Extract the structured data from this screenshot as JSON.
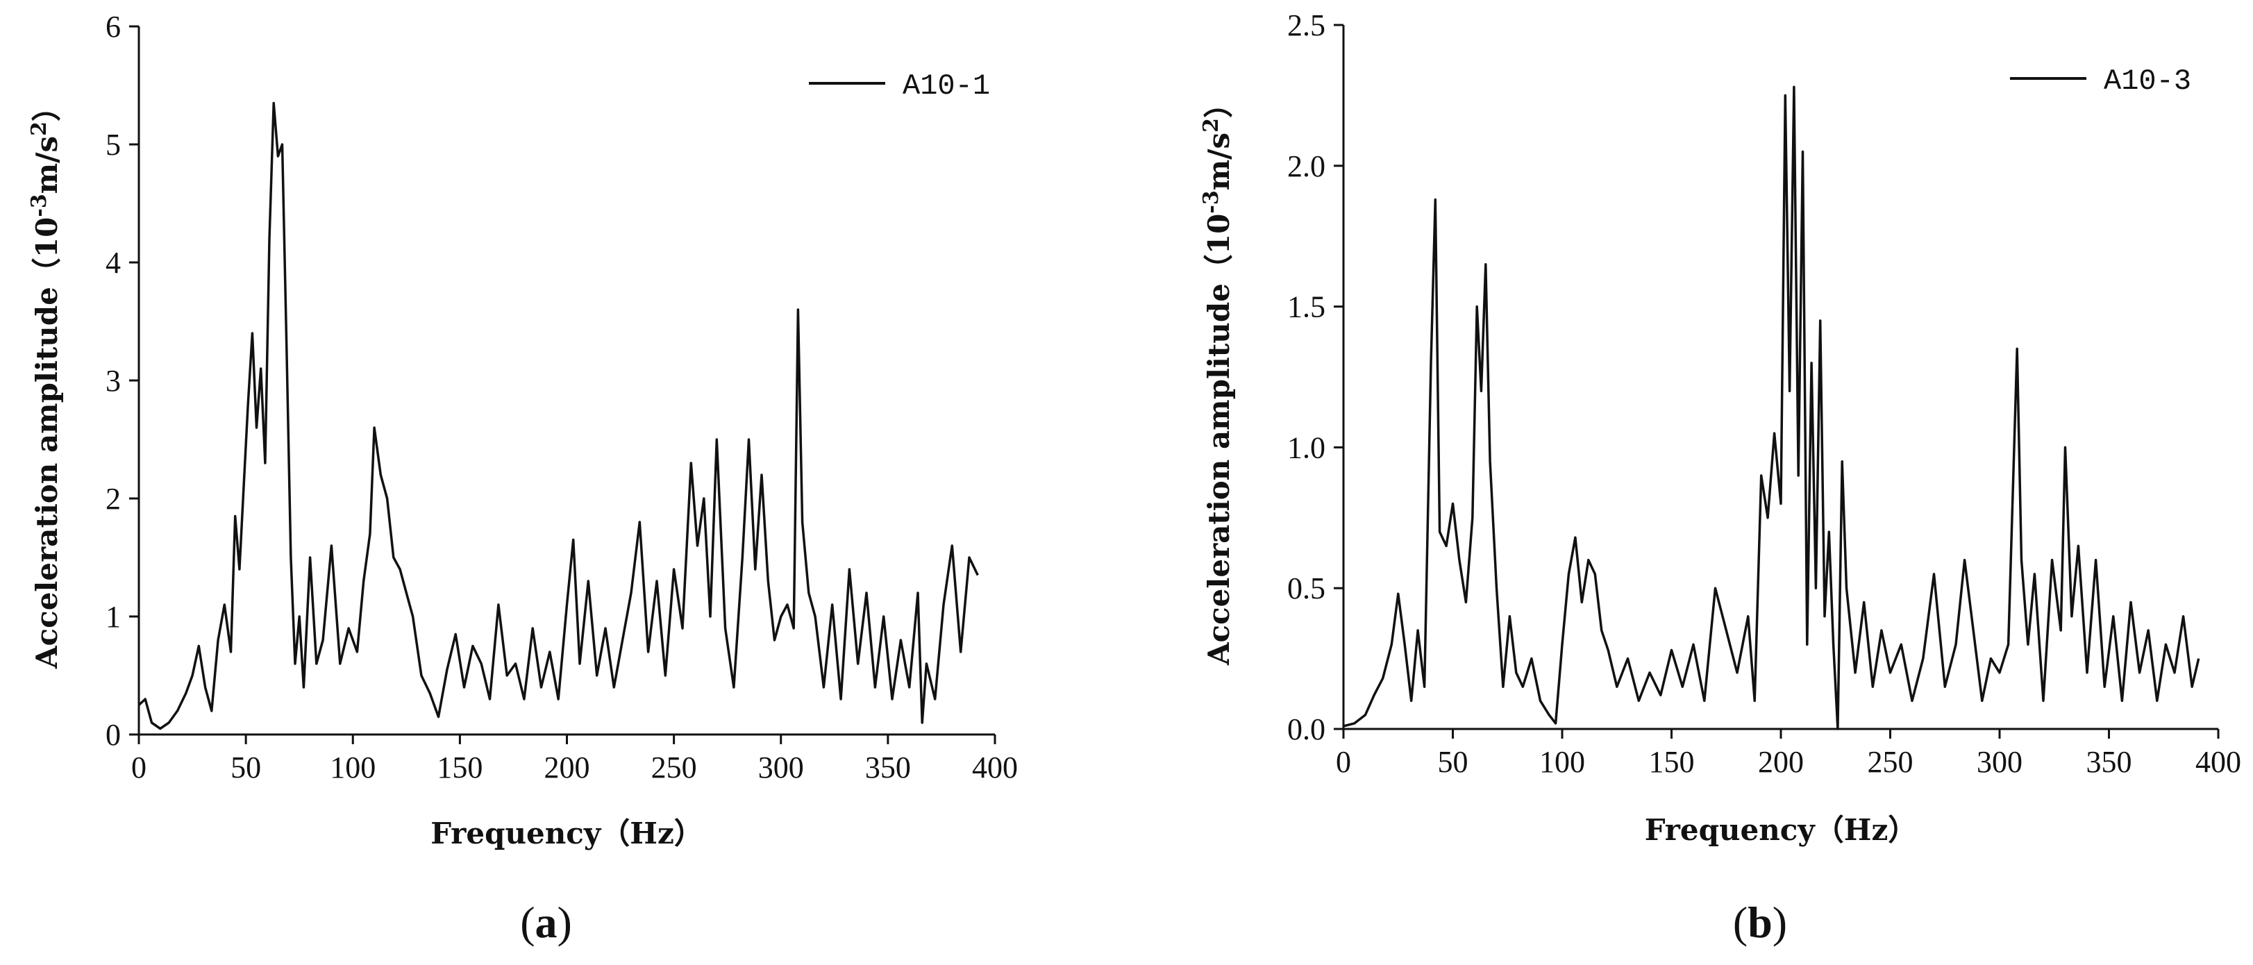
{
  "chart_data": [
    {
      "type": "line",
      "panel_label": "a",
      "xlabel": "Frequency（Hz）",
      "ylabel_prefix": "Acceleration amplitude（",
      "ylabel_base": "10",
      "ylabel_exp": "-3",
      "ylabel_unit": "m/s",
      "ylabel_unit_exp": "2",
      "ylabel_suffix": "）",
      "xlim": [
        0,
        400
      ],
      "ylim": [
        0,
        6
      ],
      "xticks": [
        0,
        50,
        100,
        150,
        200,
        250,
        300,
        350,
        400
      ],
      "yticks": [
        0,
        1,
        2,
        3,
        4,
        5,
        6
      ],
      "ytick_labels": [
        "0",
        "1",
        "2",
        "3",
        "4",
        "5",
        "6"
      ],
      "legend": "top-right",
      "series": [
        {
          "name": "A10-1",
          "x": [
            0,
            3,
            6,
            10,
            14,
            18,
            22,
            25,
            28,
            31,
            34,
            37,
            40,
            43,
            45,
            47,
            49,
            51,
            53,
            55,
            57,
            59,
            61,
            63,
            65,
            67,
            69,
            71,
            73,
            75,
            77,
            80,
            83,
            86,
            90,
            94,
            98,
            102,
            105,
            108,
            110,
            113,
            116,
            119,
            122,
            125,
            128,
            132,
            136,
            140,
            144,
            148,
            152,
            156,
            160,
            164,
            168,
            172,
            176,
            180,
            184,
            188,
            192,
            196,
            200,
            203,
            206,
            210,
            214,
            218,
            222,
            226,
            230,
            234,
            238,
            242,
            246,
            250,
            254,
            258,
            261,
            264,
            267,
            270,
            274,
            278,
            282,
            285,
            288,
            291,
            294,
            297,
            300,
            303,
            306,
            308,
            310,
            313,
            316,
            320,
            324,
            328,
            332,
            336,
            340,
            344,
            348,
            352,
            356,
            360,
            364,
            366,
            368,
            372,
            376,
            380,
            384,
            388,
            392
          ],
          "y": [
            0.25,
            0.3,
            0.1,
            0.05,
            0.1,
            0.2,
            0.35,
            0.5,
            0.75,
            0.4,
            0.2,
            0.8,
            1.1,
            0.7,
            1.85,
            1.4,
            2.1,
            2.8,
            3.4,
            2.6,
            3.1,
            2.3,
            4.2,
            5.35,
            4.9,
            5.0,
            3.3,
            1.5,
            0.6,
            1.0,
            0.4,
            1.5,
            0.6,
            0.8,
            1.6,
            0.6,
            0.9,
            0.7,
            1.3,
            1.7,
            2.6,
            2.2,
            2.0,
            1.5,
            1.4,
            1.2,
            1.0,
            0.5,
            0.35,
            0.15,
            0.55,
            0.85,
            0.4,
            0.75,
            0.6,
            0.3,
            1.1,
            0.5,
            0.6,
            0.3,
            0.9,
            0.4,
            0.7,
            0.3,
            1.1,
            1.65,
            0.6,
            1.3,
            0.5,
            0.9,
            0.4,
            0.8,
            1.2,
            1.8,
            0.7,
            1.3,
            0.5,
            1.4,
            0.9,
            2.3,
            1.6,
            2.0,
            1.0,
            2.5,
            0.9,
            0.4,
            1.5,
            2.5,
            1.4,
            2.2,
            1.3,
            0.8,
            1.0,
            1.1,
            0.9,
            3.6,
            1.8,
            1.2,
            1.0,
            0.4,
            1.1,
            0.3,
            1.4,
            0.6,
            1.2,
            0.4,
            1.0,
            0.3,
            0.8,
            0.4,
            1.2,
            0.1,
            0.6,
            0.3,
            1.1,
            1.6,
            0.7,
            1.5,
            1.35
          ]
        }
      ]
    },
    {
      "type": "line",
      "panel_label": "b",
      "xlabel": "Frequency（Hz）",
      "ylabel_prefix": "Acceleration amplitude（",
      "ylabel_base": "10",
      "ylabel_exp": "-3",
      "ylabel_unit": "m/s",
      "ylabel_unit_exp": "2",
      "ylabel_suffix": "）",
      "xlim": [
        0,
        400
      ],
      "ylim": [
        0,
        2.5
      ],
      "xticks": [
        0,
        50,
        100,
        150,
        200,
        250,
        300,
        350,
        400
      ],
      "yticks": [
        0,
        0.5,
        1,
        1.5,
        2,
        2.5
      ],
      "ytick_labels": [
        "0.0",
        "0.5",
        "1.0",
        "1.5",
        "2.0",
        "2.5"
      ],
      "legend": "top-right",
      "series": [
        {
          "name": "A10-3",
          "x": [
            0,
            5,
            10,
            14,
            18,
            22,
            25,
            28,
            31,
            34,
            37,
            40,
            42,
            44,
            47,
            50,
            53,
            56,
            59,
            61,
            63,
            65,
            67,
            70,
            73,
            76,
            79,
            82,
            86,
            90,
            94,
            97,
            100,
            103,
            106,
            109,
            112,
            115,
            118,
            121,
            125,
            130,
            135,
            140,
            145,
            150,
            155,
            160,
            165,
            170,
            175,
            180,
            185,
            188,
            191,
            194,
            197,
            200,
            202,
            204,
            206,
            208,
            210,
            212,
            214,
            216,
            218,
            220,
            222,
            224,
            226,
            228,
            230,
            234,
            238,
            242,
            246,
            250,
            255,
            260,
            265,
            270,
            275,
            280,
            284,
            288,
            292,
            296,
            300,
            304,
            308,
            310,
            313,
            316,
            320,
            324,
            328,
            330,
            333,
            336,
            340,
            344,
            348,
            352,
            356,
            360,
            364,
            368,
            372,
            376,
            380,
            384,
            388,
            391
          ],
          "y": [
            0.01,
            0.02,
            0.05,
            0.12,
            0.18,
            0.3,
            0.48,
            0.3,
            0.1,
            0.35,
            0.15,
            1.3,
            1.88,
            0.7,
            0.65,
            0.8,
            0.6,
            0.45,
            0.75,
            1.5,
            1.2,
            1.65,
            0.95,
            0.5,
            0.15,
            0.4,
            0.2,
            0.15,
            0.25,
            0.1,
            0.05,
            0.02,
            0.3,
            0.55,
            0.68,
            0.45,
            0.6,
            0.55,
            0.35,
            0.28,
            0.15,
            0.25,
            0.1,
            0.2,
            0.12,
            0.28,
            0.15,
            0.3,
            0.1,
            0.5,
            0.35,
            0.2,
            0.4,
            0.1,
            0.9,
            0.75,
            1.05,
            0.8,
            2.25,
            1.2,
            2.28,
            0.9,
            2.05,
            0.3,
            1.3,
            0.5,
            1.45,
            0.4,
            0.7,
            0.3,
            0.0,
            0.95,
            0.5,
            0.2,
            0.45,
            0.15,
            0.35,
            0.2,
            0.3,
            0.1,
            0.25,
            0.55,
            0.15,
            0.3,
            0.6,
            0.35,
            0.1,
            0.25,
            0.2,
            0.3,
            1.35,
            0.6,
            0.3,
            0.55,
            0.1,
            0.6,
            0.35,
            1.0,
            0.4,
            0.65,
            0.2,
            0.6,
            0.15,
            0.4,
            0.1,
            0.45,
            0.2,
            0.35,
            0.1,
            0.3,
            0.2,
            0.4,
            0.15,
            0.25
          ]
        }
      ]
    }
  ]
}
